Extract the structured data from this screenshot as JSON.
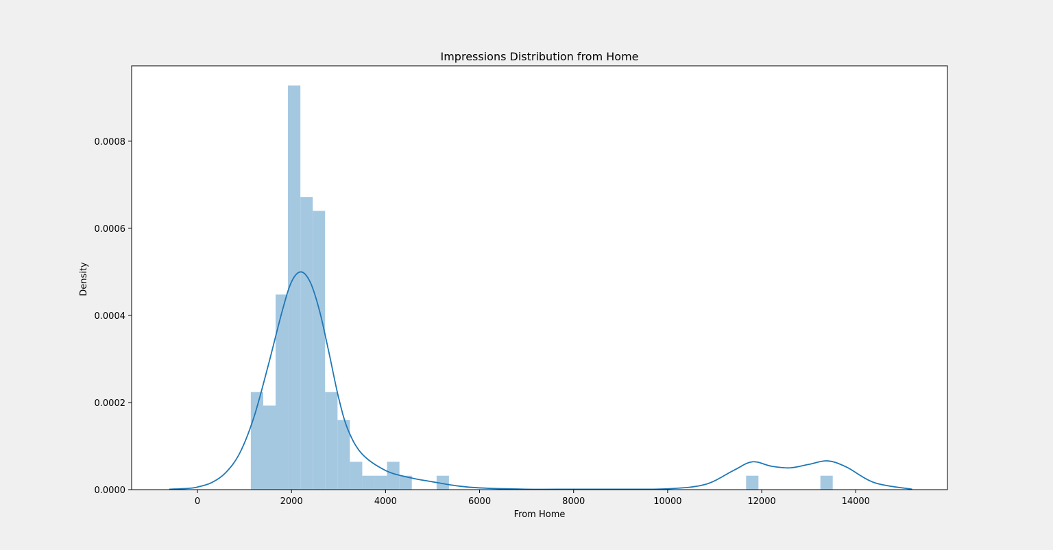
{
  "chart_data": {
    "type": "histogram",
    "title": "Impressions Distribution from Home",
    "xlabel": "From Home",
    "ylabel": "Density",
    "xlim": [
      -1400,
      15950
    ],
    "ylim": [
      0,
      0.000973
    ],
    "xticks": [
      0,
      2000,
      4000,
      6000,
      8000,
      10000,
      12000,
      14000
    ],
    "yticks": [
      0.0,
      0.0002,
      0.0004,
      0.0006,
      0.0008
    ],
    "xtick_labels": [
      "0",
      "2000",
      "4000",
      "6000",
      "8000",
      "10000",
      "12000",
      "14000"
    ],
    "ytick_labels": [
      "0.0000",
      "0.0002",
      "0.0004",
      "0.0006",
      "0.0008"
    ],
    "bars": [
      {
        "x0": 1135,
        "x1": 1399,
        "density": 0.000224
      },
      {
        "x0": 1399,
        "x1": 1662,
        "density": 0.000193
      },
      {
        "x0": 1662,
        "x1": 1925,
        "density": 0.000448
      },
      {
        "x0": 1925,
        "x1": 2189,
        "density": 0.000928
      },
      {
        "x0": 2189,
        "x1": 2452,
        "density": 0.000672
      },
      {
        "x0": 2452,
        "x1": 2715,
        "density": 0.00064
      },
      {
        "x0": 2715,
        "x1": 2979,
        "density": 0.000224
      },
      {
        "x0": 2979,
        "x1": 3242,
        "density": 0.00016
      },
      {
        "x0": 3242,
        "x1": 3505,
        "density": 6.4e-05
      },
      {
        "x0": 3505,
        "x1": 3769,
        "density": 3.2e-05
      },
      {
        "x0": 3769,
        "x1": 4032,
        "density": 3.2e-05
      },
      {
        "x0": 4032,
        "x1": 4296,
        "density": 6.4e-05
      },
      {
        "x0": 4296,
        "x1": 4559,
        "density": 3.2e-05
      },
      {
        "x0": 5086,
        "x1": 5349,
        "density": 3.2e-05
      },
      {
        "x0": 11668,
        "x1": 11931,
        "density": 3.2e-05
      },
      {
        "x0": 13248,
        "x1": 13511,
        "density": 3.2e-05
      }
    ],
    "kde": {
      "x": [
        -600,
        -200,
        0,
        300,
        600,
        900,
        1200,
        1500,
        1800,
        2000,
        2200,
        2400,
        2600,
        2800,
        3000,
        3200,
        3500,
        4000,
        4500,
        5000,
        5500,
        6000,
        7000,
        8000,
        9000,
        10000,
        10800,
        11400,
        11800,
        12200,
        12600,
        13000,
        13400,
        13800,
        14400,
        15200
      ],
      "y": [
        1e-06,
        3e-06,
        6e-06,
        1.6e-05,
        3.9e-05,
        8.4e-05,
        0.000166,
        0.000283,
        0.000409,
        0.000477,
        0.0005,
        0.000476,
        0.000409,
        0.000313,
        0.000212,
        0.000138,
        8.2e-05,
        4.4e-05,
        2.8e-05,
        1.8e-05,
        9e-06,
        4e-06,
        1e-06,
        1e-06,
        1e-06,
        2e-06,
        1.2e-05,
        4.4e-05,
        6.4e-05,
        5.4e-05,
        5e-05,
        5.8e-05,
        6.6e-05,
        5.2e-05,
        1.6e-05,
        1e-06
      ]
    },
    "bar_color": "#a5c8e1",
    "line_color": "#1f77b4",
    "grid": false,
    "legend": false
  }
}
